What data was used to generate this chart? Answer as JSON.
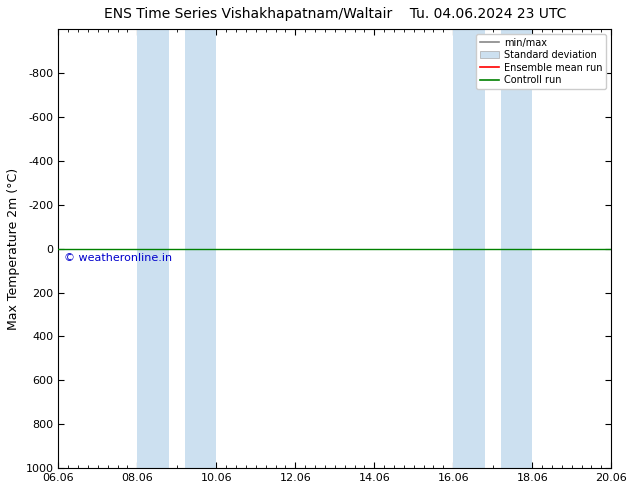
{
  "title_left": "ENS Time Series Vishakhapatnam/Waltair",
  "title_right": "Tu. 04.06.2024 23 UTC",
  "ylabel": "Max Temperature 2m (°C)",
  "xlabel": "",
  "xtick_labels": [
    "06.06",
    "08.06",
    "10.06",
    "12.06",
    "14.06",
    "16.06",
    "18.06",
    "20.06"
  ],
  "xtick_positions": [
    0,
    2,
    4,
    6,
    8,
    10,
    12,
    14
  ],
  "ylim_top": -1000,
  "ylim_bottom": 1000,
  "yticks": [
    -800,
    -600,
    -400,
    -200,
    0,
    200,
    400,
    600,
    800,
    1000
  ],
  "background_color": "#ffffff",
  "plot_bg_color": "#ffffff",
  "shaded_regions": [
    {
      "x_start": 2.0,
      "x_end": 2.8
    },
    {
      "x_start": 3.2,
      "x_end": 4.0
    },
    {
      "x_start": 10.0,
      "x_end": 10.8
    },
    {
      "x_start": 11.2,
      "x_end": 12.0
    }
  ],
  "control_run_y": 0,
  "control_run_color": "#008000",
  "ensemble_mean_color": "#ff0000",
  "minmax_color": "#888888",
  "std_dev_color": "#cce0f0",
  "copyright_text": "© weatheronline.in",
  "copyright_color": "#0000cc",
  "legend_labels": [
    "min/max",
    "Standard deviation",
    "Ensemble mean run",
    "Controll run"
  ],
  "legend_colors": [
    "#888888",
    "#cce0f0",
    "#ff0000",
    "#008000"
  ],
  "title_fontsize": 10,
  "tick_fontsize": 8,
  "label_fontsize": 9
}
